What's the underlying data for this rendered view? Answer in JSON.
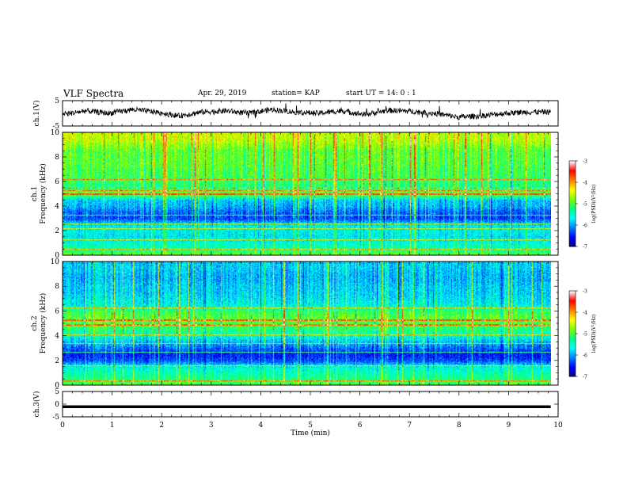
{
  "header": {
    "title": "VLF Spectra",
    "date": "Apr. 29, 2019",
    "station": "station= KAP",
    "start_ut": "start UT =   14: 0  : 1"
  },
  "chart_data": [
    {
      "type": "line",
      "name": "ch.1 waveform",
      "ylabel": "ch.1(V)",
      "ylim": [
        -5,
        5
      ],
      "yticks": [
        "5",
        "-5"
      ],
      "xlim": [
        0,
        10
      ],
      "x_end": 9.85,
      "approx_values": [
        -0.5,
        1.0,
        0.0,
        1.5,
        0.5,
        -1.0,
        0.5,
        1.0,
        0.0,
        1.5,
        0.5,
        0.0,
        1.0,
        -0.5,
        1.2,
        0.8,
        0.0,
        -1.5,
        -1.0,
        0.0,
        0.5,
        0.5
      ]
    },
    {
      "type": "heatmap",
      "name": "ch.1 spectrogram",
      "ylabel": "ch.1",
      "ylabel2": "Frequency (kHz)",
      "xlim": [
        0,
        10
      ],
      "x_end": 9.85,
      "ylim": [
        0,
        10
      ],
      "yticks": [
        "0",
        "2",
        "4",
        "6",
        "8",
        "10"
      ],
      "colorbar": {
        "label": "log(PSD)(V²/Hz)",
        "range": [
          -7,
          -3
        ],
        "ticks": [
          "-3",
          "-4",
          "-5",
          "-6",
          "-7"
        ]
      },
      "band_levels": [
        [
          0.0,
          -4.8
        ],
        [
          0.5,
          -5.3
        ],
        [
          1.0,
          -5.5
        ],
        [
          1.5,
          -5.7
        ],
        [
          2.0,
          -5.6
        ],
        [
          2.5,
          -5.7
        ],
        [
          3.0,
          -6.3
        ],
        [
          3.5,
          -6.2
        ],
        [
          4.0,
          -5.9
        ],
        [
          4.5,
          -5.8
        ],
        [
          5.0,
          -4.8
        ],
        [
          5.5,
          -5.2
        ],
        [
          6.0,
          -5.1
        ],
        [
          6.5,
          -5.0
        ],
        [
          7.0,
          -5.0
        ],
        [
          7.5,
          -4.9
        ],
        [
          8.0,
          -4.9
        ],
        [
          8.5,
          -4.9
        ],
        [
          9.0,
          -4.7
        ],
        [
          9.5,
          -4.5
        ],
        [
          10.0,
          -4.5
        ]
      ],
      "strong_lines_khz": [
        0.5,
        1.3,
        2.2,
        2.6,
        3.3,
        5.0,
        5.3,
        5.5,
        6.2
      ]
    },
    {
      "type": "heatmap",
      "name": "ch.2 spectrogram",
      "ylabel": "ch.2",
      "ylabel2": "Frequency (kHz)",
      "xlim": [
        0,
        10
      ],
      "x_end": 9.85,
      "ylim": [
        0,
        10
      ],
      "yticks": [
        "0",
        "2",
        "4",
        "6",
        "8",
        "10"
      ],
      "colorbar": {
        "label": "log(PSD)(V²/Hz)",
        "range": [
          -7,
          -3
        ],
        "ticks": [
          "-3",
          "-4",
          "-5",
          "-6",
          "-7"
        ]
      },
      "band_levels": [
        [
          0.0,
          -4.9
        ],
        [
          0.5,
          -5.2
        ],
        [
          1.0,
          -5.4
        ],
        [
          1.5,
          -5.6
        ],
        [
          2.0,
          -6.3
        ],
        [
          2.5,
          -6.5
        ],
        [
          3.0,
          -6.2
        ],
        [
          3.5,
          -5.9
        ],
        [
          4.0,
          -5.5
        ],
        [
          4.5,
          -5.2
        ],
        [
          5.0,
          -5.0
        ],
        [
          5.5,
          -4.9
        ],
        [
          6.0,
          -5.1
        ],
        [
          6.5,
          -5.6
        ],
        [
          7.0,
          -5.7
        ],
        [
          7.5,
          -5.8
        ],
        [
          8.0,
          -5.8
        ],
        [
          8.5,
          -5.9
        ],
        [
          9.0,
          -5.9
        ],
        [
          9.5,
          -5.8
        ],
        [
          10.0,
          -5.8
        ]
      ],
      "strong_lines_khz": [
        0.4,
        1.6,
        2.7,
        3.4,
        4.1,
        4.9,
        5.3,
        6.3
      ]
    },
    {
      "type": "line",
      "name": "ch.3 waveform",
      "ylabel": "ch.3(V)",
      "ylim": [
        -5,
        5
      ],
      "yticks": [
        "5",
        "0",
        "-5"
      ],
      "xlim": [
        0,
        10
      ],
      "x_end": 9.85,
      "constant_value": -1.0
    }
  ],
  "xaxis": {
    "label": "Time (min)",
    "ticks": [
      "0",
      "1",
      "2",
      "3",
      "4",
      "5",
      "6",
      "7",
      "8",
      "9",
      "10"
    ]
  },
  "colormap": [
    "#000080",
    "#0000ff",
    "#0080ff",
    "#00ffff",
    "#00ff80",
    "#80ff00",
    "#ffff00",
    "#ff8000",
    "#ff0000",
    "#ffffff"
  ]
}
